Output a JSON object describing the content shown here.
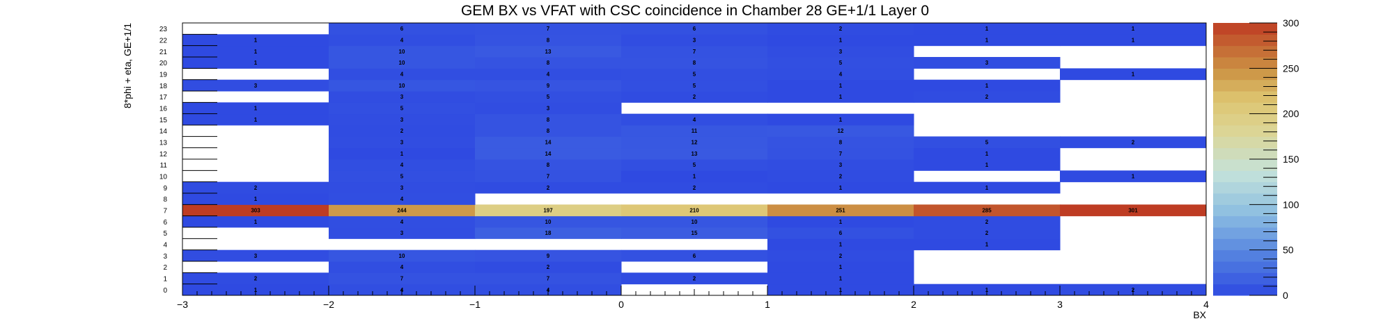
{
  "chart_data": {
    "type": "heatmap",
    "title": "GEM BX vs VFAT with CSC coincidence in Chamber 28 GE+1/1 Layer 0",
    "xlabel": "BX",
    "ylabel": "8*phi + eta, GE+1/1",
    "x_bins": [
      -3,
      -2,
      -1,
      0,
      1,
      2,
      3,
      4
    ],
    "xlim": [
      -3,
      4
    ],
    "x_tick_labels": [
      "−3",
      "−2",
      "−1",
      "0",
      "1",
      "2",
      "3",
      "4"
    ],
    "y_rows": [
      0,
      1,
      2,
      3,
      4,
      5,
      6,
      7,
      8,
      9,
      10,
      11,
      12,
      13,
      14,
      15,
      16,
      17,
      18,
      19,
      20,
      21,
      22,
      23
    ],
    "y_tick_labels": [
      "0",
      "1",
      "2",
      "3",
      "4",
      "5",
      "6",
      "7",
      "8",
      "9",
      "10",
      "11",
      "12",
      "13",
      "14",
      "15",
      "16",
      "17",
      "18",
      "19",
      "20",
      "21",
      "22",
      "23"
    ],
    "z_range": [
      0,
      300
    ],
    "colorbar_ticks": [
      "0",
      "50",
      "100",
      "150",
      "200",
      "250",
      "300"
    ],
    "values": [
      [
        1,
        4,
        4,
        0,
        1,
        1,
        2
      ],
      [
        2,
        7,
        7,
        2,
        1,
        0,
        0
      ],
      [
        0,
        4,
        2,
        0,
        1,
        0,
        0
      ],
      [
        3,
        10,
        9,
        6,
        2,
        0,
        0
      ],
      [
        0,
        0,
        0,
        0,
        1,
        1,
        0
      ],
      [
        0,
        3,
        18,
        15,
        6,
        2,
        0
      ],
      [
        1,
        4,
        10,
        10,
        1,
        2,
        0
      ],
      [
        303,
        244,
        197,
        210,
        251,
        285,
        301
      ],
      [
        1,
        4,
        0,
        0,
        0,
        0,
        0
      ],
      [
        2,
        3,
        2,
        2,
        1,
        1,
        0
      ],
      [
        0,
        5,
        7,
        1,
        2,
        0,
        1
      ],
      [
        0,
        4,
        8,
        5,
        3,
        1,
        0
      ],
      [
        0,
        1,
        14,
        13,
        7,
        1,
        0
      ],
      [
        0,
        3,
        14,
        12,
        8,
        5,
        2
      ],
      [
        0,
        2,
        8,
        11,
        12,
        0,
        0
      ],
      [
        1,
        3,
        8,
        4,
        1,
        0,
        0
      ],
      [
        1,
        5,
        3,
        0,
        0,
        0,
        0
      ],
      [
        0,
        3,
        5,
        2,
        1,
        2,
        0
      ],
      [
        3,
        10,
        9,
        5,
        1,
        1,
        0
      ],
      [
        0,
        4,
        4,
        5,
        4,
        0,
        1
      ],
      [
        1,
        10,
        8,
        8,
        5,
        3,
        0
      ],
      [
        1,
        10,
        13,
        7,
        3,
        0,
        0
      ],
      [
        1,
        4,
        8,
        3,
        1,
        1,
        1
      ],
      [
        0,
        6,
        7,
        6,
        2,
        1,
        1
      ]
    ],
    "grid": false,
    "legend": "colorbar-right"
  }
}
